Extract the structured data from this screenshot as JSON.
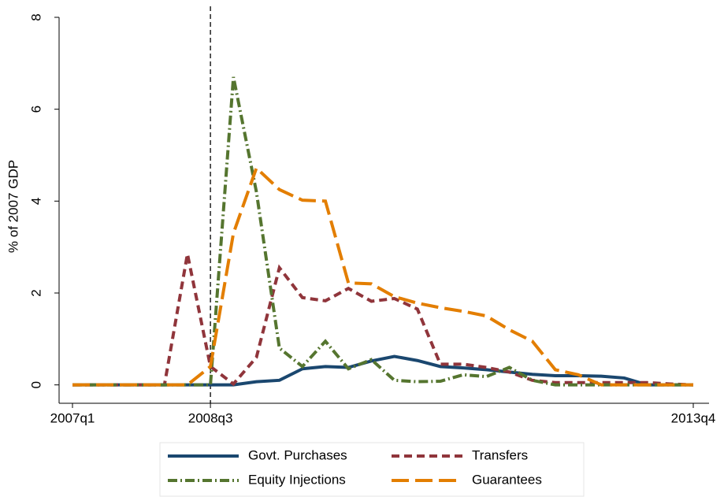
{
  "chart_data": {
    "type": "line",
    "y_axis_label": "% of 2007 GDP",
    "categories": [
      "2007q1",
      null,
      null,
      null,
      null,
      null,
      "2008q3",
      null,
      null,
      null,
      null,
      null,
      null,
      null,
      null,
      null,
      null,
      null,
      null,
      null,
      null,
      null,
      null,
      null,
      null,
      null,
      null,
      "2013q4"
    ],
    "vline": "2008q3",
    "ylim": [
      -0.4,
      8
    ],
    "yticks": [
      0,
      2,
      4,
      6,
      8
    ],
    "series": [
      {
        "name": "Govt. Purchases",
        "color": "#1a476f",
        "dash": "solid",
        "values": [
          0,
          0,
          0,
          0,
          0,
          0,
          0,
          0,
          0.07,
          0.1,
          0.35,
          0.4,
          0.38,
          0.52,
          0.62,
          0.53,
          0.4,
          0.37,
          0.33,
          0.28,
          0.23,
          0.2,
          0.2,
          0.19,
          0.15,
          0,
          0,
          0
        ]
      },
      {
        "name": "Transfers",
        "color": "#90353b",
        "dash": "short",
        "values": [
          0,
          0,
          0,
          0,
          0,
          2.85,
          0.4,
          0.02,
          0.6,
          2.55,
          1.9,
          1.83,
          2.1,
          1.82,
          1.88,
          1.65,
          0.45,
          0.45,
          0.38,
          0.28,
          0.1,
          0.05,
          0.05,
          0.05,
          0.05,
          0.05,
          0.02,
          0
        ]
      },
      {
        "name": "Equity Injections",
        "color": "#55752f",
        "dash": "dashdot",
        "values": [
          0,
          0,
          0,
          0,
          0,
          0,
          0,
          6.7,
          4.2,
          0.8,
          0.4,
          0.95,
          0.35,
          0.55,
          0.1,
          0.07,
          0.08,
          0.22,
          0.18,
          0.38,
          0.1,
          0,
          0,
          0,
          0,
          0,
          0,
          0
        ]
      },
      {
        "name": "Guarantees",
        "color": "#e37e00",
        "dash": "long",
        "values": [
          0,
          0,
          0,
          0,
          0,
          0,
          0.4,
          3.3,
          4.72,
          4.25,
          4.02,
          4.0,
          2.22,
          2.2,
          1.92,
          1.78,
          1.68,
          1.6,
          1.5,
          1.2,
          0.95,
          0.33,
          0.22,
          0,
          0,
          0,
          0,
          0
        ]
      }
    ]
  }
}
